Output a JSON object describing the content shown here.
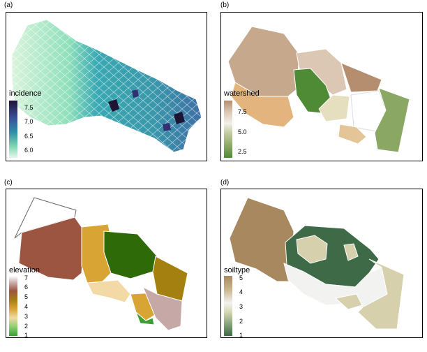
{
  "panels": [
    {
      "label": "(a)",
      "legend": {
        "title": "incidence",
        "ticks": [
          "7.5",
          "7.0",
          "6.5",
          "6.0"
        ],
        "colors": [
          "#e8f7ea",
          "#bfeccc",
          "#7fd6b3",
          "#3fb6aa",
          "#2f8fa6",
          "#3270a3",
          "#3a4f98",
          "#352f73",
          "#1e1534"
        ]
      }
    },
    {
      "label": "(b)",
      "legend": {
        "title": "watershed",
        "ticks": [
          "7.5",
          "5.0",
          "2.5"
        ],
        "colors": [
          "#4f8b34",
          "#8aa764",
          "#c6cfa4",
          "#f2f1ea",
          "#dcc7b4",
          "#c6a88d",
          "#b58e6f"
        ]
      }
    },
    {
      "label": "(c)",
      "legend": {
        "title": "elevation",
        "ticks": [
          "7",
          "6",
          "5",
          "4",
          "3",
          "2",
          "1"
        ],
        "colors": [
          "#3d9e33",
          "#8ccf6e",
          "#f2d9a6",
          "#d8a433",
          "#a3800f",
          "#9c5541",
          "#c6a8a6",
          "#ffffff"
        ]
      }
    },
    {
      "label": "(d)",
      "legend": {
        "title": "soiltype",
        "ticks": [
          "5",
          "4",
          "3",
          "2",
          "1"
        ],
        "colors": [
          "#3e6a48",
          "#87a47d",
          "#d6d9b4",
          "#f2f2f0",
          "#cdbb95",
          "#a8885e"
        ]
      }
    }
  ]
}
